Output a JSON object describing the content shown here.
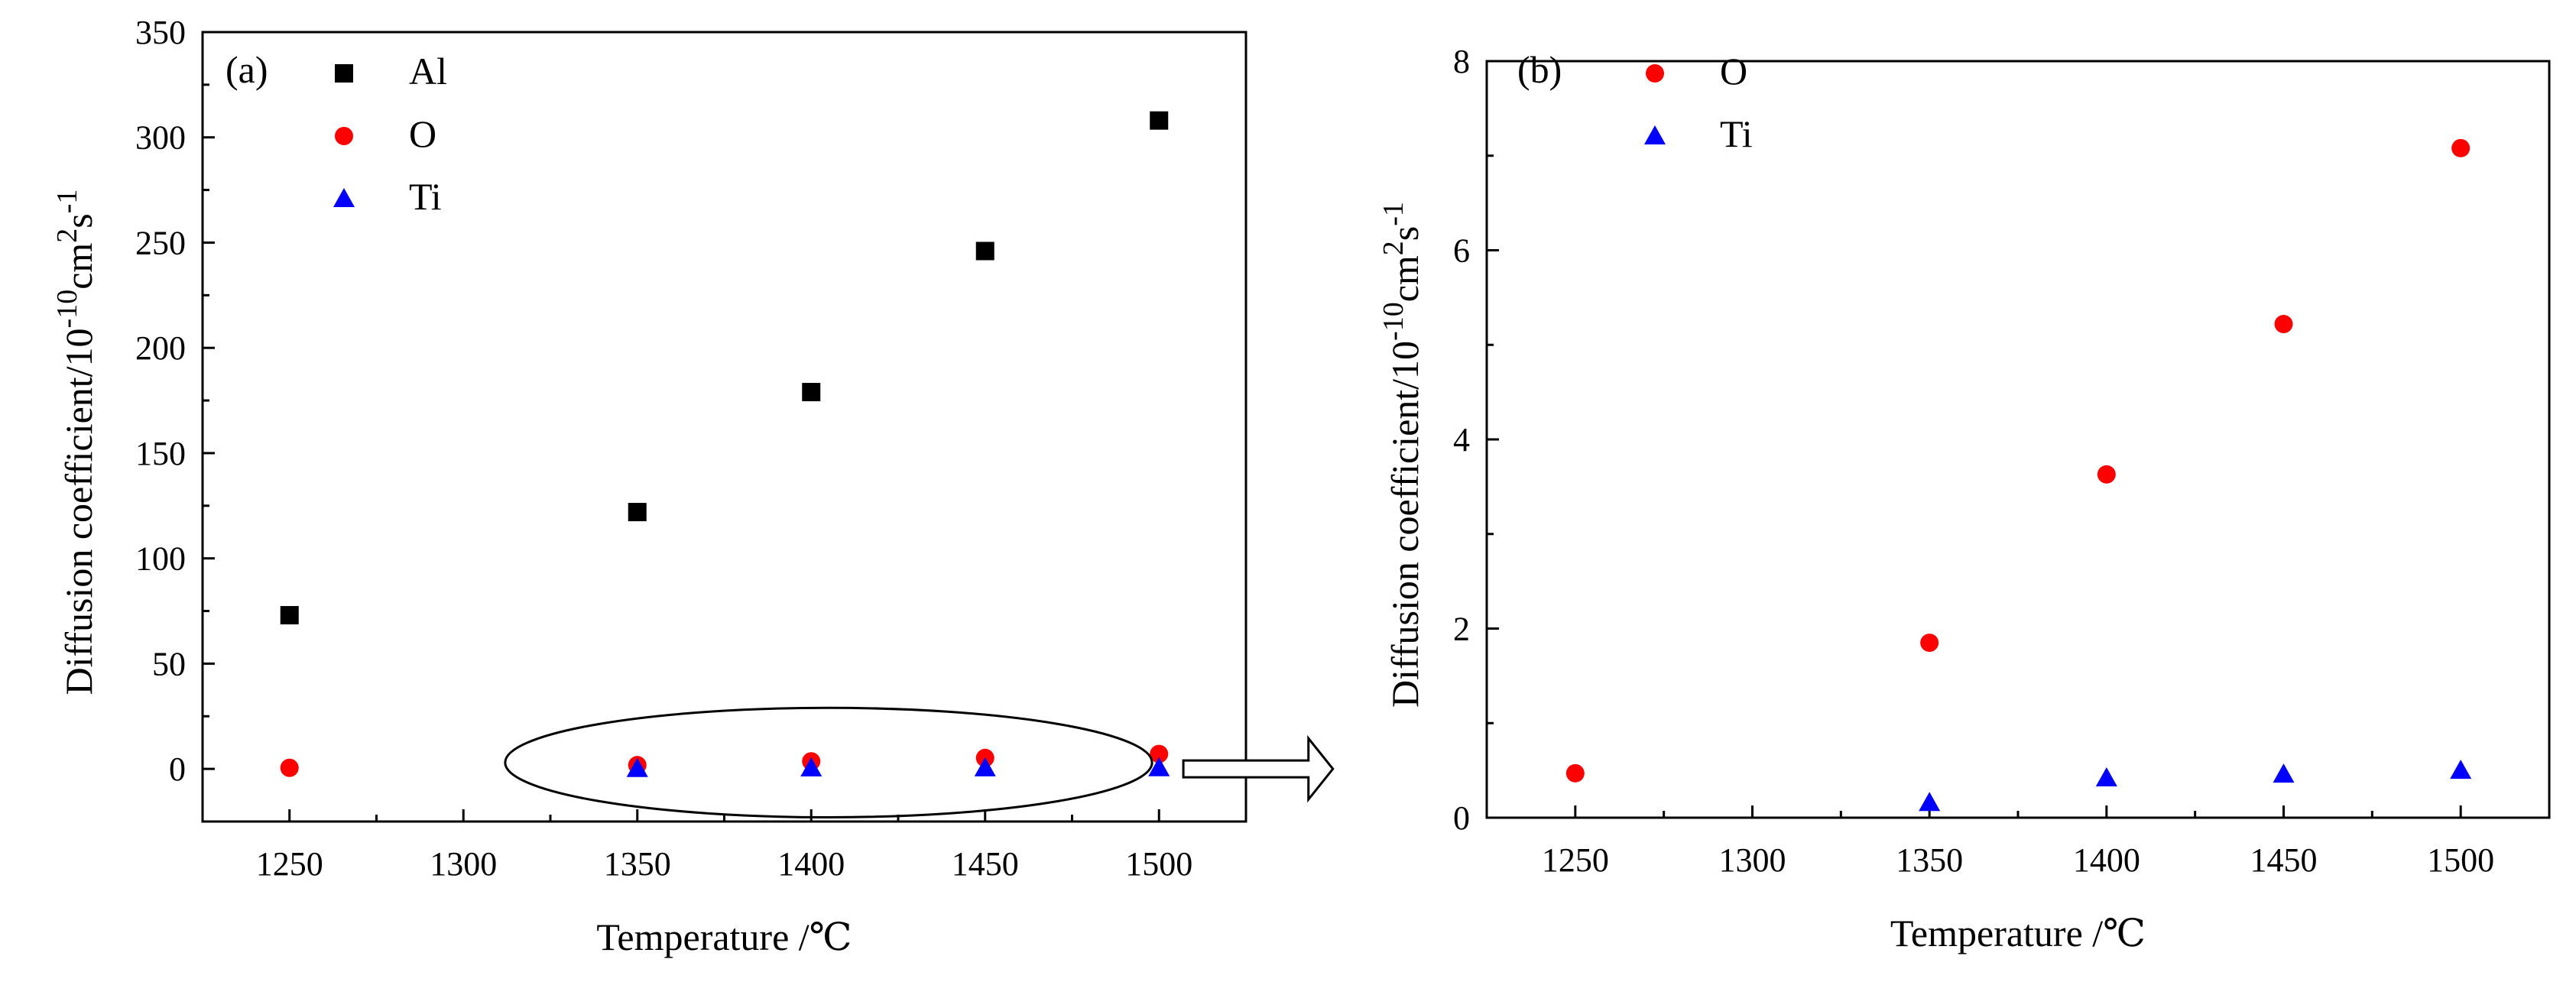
{
  "chart_data": [
    {
      "type": "scatter",
      "panel_label": "(a)",
      "title": "",
      "xlabel": "Temperature /℃",
      "ylabel": "Diffusion coefficient/10",
      "ylabel_exp1": "-10",
      "ylabel_mid": "cm",
      "ylabel_exp2": "2",
      "ylabel_tail": "s",
      "ylabel_exp3": "-1",
      "xlim": [
        1225,
        1525
      ],
      "ylim": [
        -25,
        350
      ],
      "xticks": [
        "1250",
        "1300",
        "1350",
        "1400",
        "1450",
        "1500"
      ],
      "yticks": [
        "0",
        "50",
        "100",
        "150",
        "200",
        "250",
        "300",
        "350"
      ],
      "legend_position": "top-left",
      "series": [
        {
          "name": "Al",
          "marker": "square",
          "color": "#000000",
          "x": [
            1250,
            1350,
            1400,
            1450,
            1500
          ],
          "y": [
            73,
            122,
            179,
            246,
            308
          ]
        },
        {
          "name": "O",
          "marker": "circle",
          "color": "#ff0000",
          "x": [
            1250,
            1350,
            1400,
            1450,
            1500
          ],
          "y": [
            0.5,
            1.8,
            3.6,
            5.2,
            7.1
          ]
        },
        {
          "name": "Ti",
          "marker": "triangle",
          "color": "#0000ff",
          "x": [
            1350,
            1400,
            1450,
            1500
          ],
          "y": [
            0.15,
            0.4,
            0.45,
            0.5
          ]
        }
      ],
      "annotations": [
        {
          "type": "ellipse",
          "x_center": 1405,
          "y_center": 3,
          "x_half_width": 93,
          "y_half_height": 26
        },
        {
          "type": "arrow",
          "from_x": 1507,
          "to_x": 1550,
          "y": 0
        }
      ]
    },
    {
      "type": "scatter",
      "panel_label": "(b)",
      "title": "",
      "xlabel": "Temperature /℃",
      "ylabel": "Diffusion coefficient/10",
      "ylabel_exp1": "-10",
      "ylabel_mid": "cm",
      "ylabel_exp2": "2",
      "ylabel_tail": "s",
      "ylabel_exp3": "-1",
      "xlim": [
        1225,
        1525
      ],
      "ylim": [
        0,
        8
      ],
      "xticks": [
        "1250",
        "1300",
        "1350",
        "1400",
        "1450",
        "1500"
      ],
      "yticks": [
        "0",
        "2",
        "4",
        "6",
        "8"
      ],
      "legend_position": "top-left",
      "series": [
        {
          "name": "O",
          "marker": "circle",
          "color": "#ff0000",
          "x": [
            1250,
            1350,
            1400,
            1450,
            1500
          ],
          "y": [
            0.47,
            1.85,
            3.63,
            5.22,
            7.08
          ]
        },
        {
          "name": "Ti",
          "marker": "triangle",
          "color": "#0000ff",
          "x": [
            1350,
            1400,
            1450,
            1500
          ],
          "y": [
            0.16,
            0.42,
            0.46,
            0.5
          ]
        }
      ]
    }
  ]
}
